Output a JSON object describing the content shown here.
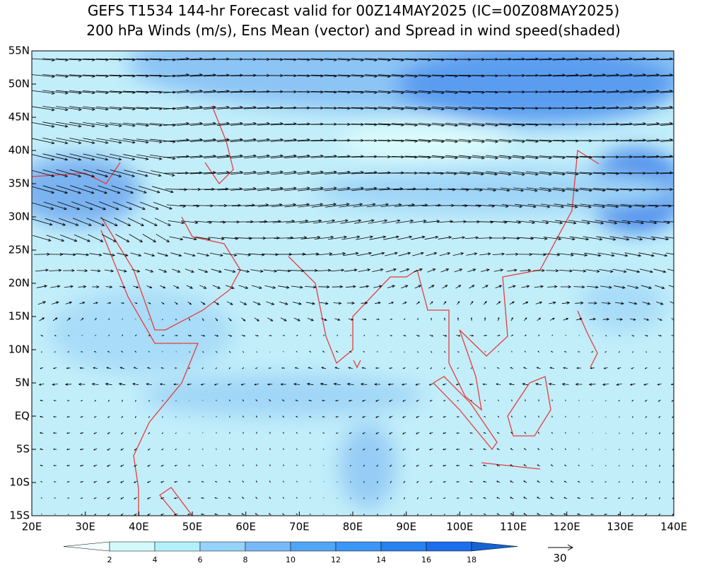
{
  "header": {
    "title_lines": [
      "GEFS T1534 144-hr Forecast valid for 00Z14MAY2025 (IC=00Z08MAY2025)",
      "200 hPa Winds (m/s), Ens Mean (vector) and Spread in wind speed(shaded)"
    ]
  },
  "map": {
    "lon_range": [
      20,
      140
    ],
    "lat_range": [
      -15,
      55
    ],
    "lon_ticks": [
      {
        "value": 20,
        "label": "20E"
      },
      {
        "value": 30,
        "label": "30E"
      },
      {
        "value": 40,
        "label": "40E"
      },
      {
        "value": 50,
        "label": "50E"
      },
      {
        "value": 60,
        "label": "60E"
      },
      {
        "value": 70,
        "label": "70E"
      },
      {
        "value": 80,
        "label": "80E"
      },
      {
        "value": 90,
        "label": "90E"
      },
      {
        "value": 100,
        "label": "100E"
      },
      {
        "value": 110,
        "label": "110E"
      },
      {
        "value": 120,
        "label": "120E"
      },
      {
        "value": 130,
        "label": "130E"
      },
      {
        "value": 140,
        "label": "140E"
      }
    ],
    "lat_ticks": [
      {
        "value": 55,
        "label": "55N"
      },
      {
        "value": 50,
        "label": "50N"
      },
      {
        "value": 45,
        "label": "45N"
      },
      {
        "value": 40,
        "label": "40N"
      },
      {
        "value": 35,
        "label": "35N"
      },
      {
        "value": 30,
        "label": "30N"
      },
      {
        "value": 25,
        "label": "25N"
      },
      {
        "value": 20,
        "label": "20N"
      },
      {
        "value": 15,
        "label": "15N"
      },
      {
        "value": 10,
        "label": "10N"
      },
      {
        "value": 5,
        "label": "5N"
      },
      {
        "value": 0,
        "label": "EQ"
      },
      {
        "value": -5,
        "label": "5S"
      },
      {
        "value": -10,
        "label": "10S"
      },
      {
        "value": -15,
        "label": "15S"
      }
    ],
    "coastline_color": "#e83c3c"
  },
  "colorbar": {
    "levels": [
      2,
      4,
      6,
      8,
      10,
      12,
      14,
      16,
      18
    ],
    "colors": [
      "#f5ffff",
      "#d2fafa",
      "#b4f0fa",
      "#96d2fa",
      "#78b9fa",
      "#50a5f5",
      "#3c96f5",
      "#2882f0",
      "#1e6eeb",
      "#1464d2"
    ]
  },
  "reference_vector": 30
}
